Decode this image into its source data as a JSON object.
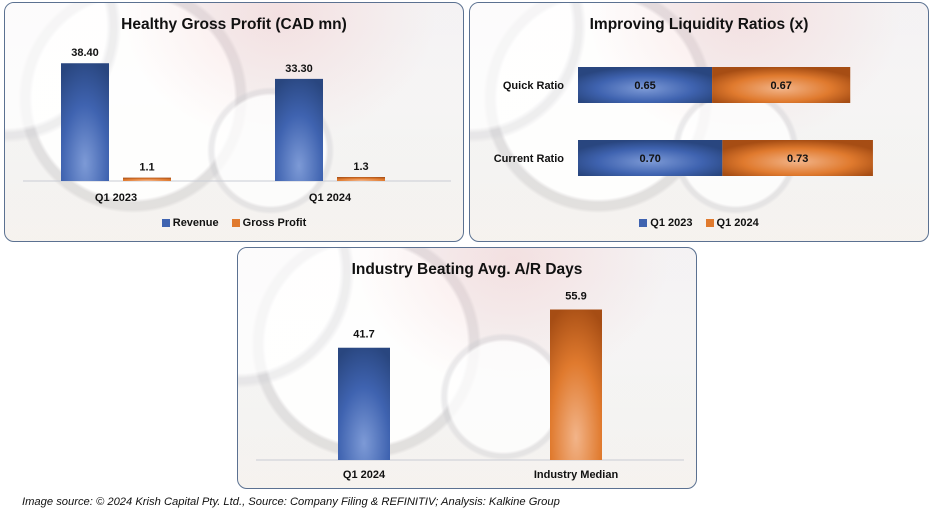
{
  "colors": {
    "blue": "#3f63b0",
    "blue_dark": "#29467f",
    "blue_light": "#7d9ad6",
    "orange": "#e07a2e",
    "orange_dark": "#a64d14",
    "orange_light": "#f2b489"
  },
  "chart_data": [
    {
      "type": "bar",
      "title": "Healthy Gross Profit (CAD mn)",
      "categories": [
        "Q1 2023",
        "Q1 2024"
      ],
      "series": [
        {
          "name": "Revenue",
          "values": [
            38.4,
            33.3
          ],
          "labels": [
            "38.40",
            "33.30"
          ],
          "color": "blue"
        },
        {
          "name": "Gross Profit",
          "values": [
            1.1,
            1.3
          ],
          "labels": [
            "1.1",
            "1.3"
          ],
          "color": "orange"
        }
      ],
      "xlabel": "",
      "ylabel": "",
      "ylim": [
        0,
        45
      ],
      "grid": false,
      "legend": "bottom"
    },
    {
      "type": "bar",
      "orientation": "horizontal-stacked",
      "title": "Improving Liquidity Ratios (x)",
      "categories": [
        "Quick Ratio",
        "Current Ratio"
      ],
      "series": [
        {
          "name": "Q1 2023",
          "values": [
            0.65,
            0.7
          ],
          "labels": [
            "0.65",
            "0.70"
          ],
          "color": "blue"
        },
        {
          "name": "Q1 2024",
          "values": [
            0.67,
            0.73
          ],
          "labels": [
            "0.67",
            "0.73"
          ],
          "color": "orange"
        }
      ],
      "xlabel": "",
      "ylabel": "",
      "xlim": [
        0,
        1.6
      ],
      "grid": false,
      "legend": "bottom"
    },
    {
      "type": "bar",
      "title": "Industry Beating Avg. A/R Days",
      "categories": [
        "Q1 2024",
        "Industry Median"
      ],
      "series": [
        {
          "name": "Avg. A/R Days",
          "values": [
            41.7,
            55.9
          ],
          "labels": [
            "41.7",
            "55.9"
          ],
          "colors": [
            "blue",
            "orange"
          ]
        }
      ],
      "xlabel": "",
      "ylabel": "",
      "ylim": [
        0,
        65
      ],
      "grid": false,
      "legend": "none"
    }
  ],
  "footer": "Image source: © 2024 Krish Capital Pty. Ltd., Source: Company Filing & REFINITIV; Analysis: Kalkine Group"
}
